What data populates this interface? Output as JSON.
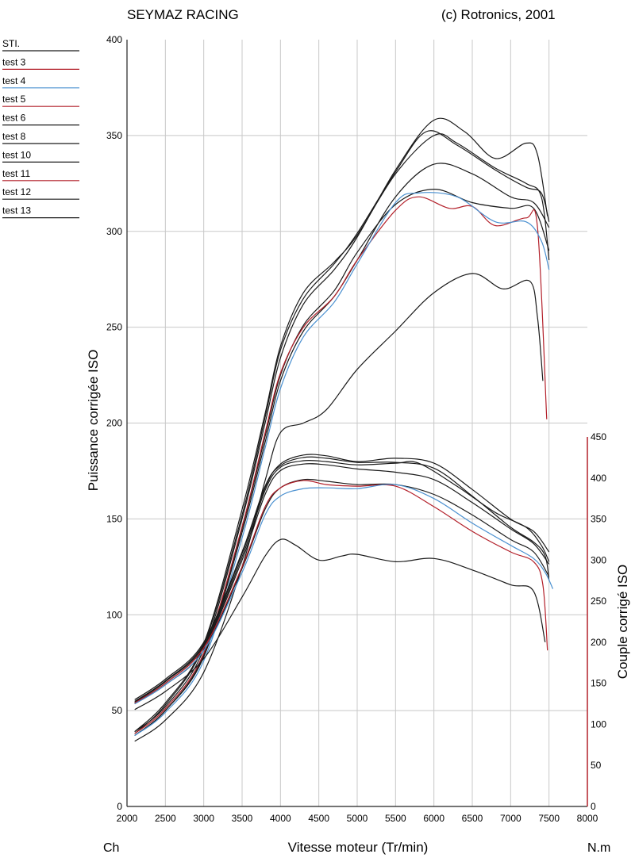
{
  "header": {
    "title": "SEYMAZ RACING",
    "copyright": "(c) Rotronics, 2001"
  },
  "colors": {
    "black": "#1a1a1a",
    "red": "#b3202a",
    "blue": "#4a90d0",
    "grid": "#c8c8c8"
  },
  "chart_data": {
    "type": "line",
    "xlabel": "Vitesse moteur (Tr/min)",
    "ylabel_left": "Puissance corrigée ISO",
    "ylabel_right": "Couple corrigé ISO",
    "unit_left": "Ch",
    "unit_right": "N.m",
    "xlim": [
      2000,
      8000
    ],
    "ylim_left": [
      0,
      400
    ],
    "ylim_right": [
      0,
      450
    ],
    "x_ticks": [
      2000,
      2500,
      3000,
      3500,
      4000,
      4500,
      5000,
      5500,
      6000,
      6500,
      7000,
      7500,
      8000
    ],
    "y_left_ticks": [
      0,
      50,
      100,
      150,
      200,
      250,
      300,
      350,
      400
    ],
    "y_right_ticks": [
      0,
      50,
      100,
      150,
      200,
      250,
      300,
      350,
      400,
      450
    ],
    "grid": true,
    "legend_position": "top-left",
    "legend": [
      {
        "label": "STI.",
        "color": "black"
      },
      {
        "label": "test 3",
        "color": "red"
      },
      {
        "label": "test 4",
        "color": "blue"
      },
      {
        "label": "test 5",
        "color": "red"
      },
      {
        "label": "test 6",
        "color": "black"
      },
      {
        "label": "test 8",
        "color": "black"
      },
      {
        "label": "test 10",
        "color": "black"
      },
      {
        "label": "test 11",
        "color": "red"
      },
      {
        "label": "test 12",
        "color": "black"
      },
      {
        "label": "test 13",
        "color": "black"
      }
    ],
    "power_series": [
      {
        "color": "black",
        "points": [
          [
            2100,
            39
          ],
          [
            2500,
            54
          ],
          [
            3000,
            85
          ],
          [
            3500,
            155
          ],
          [
            3800,
            205
          ],
          [
            4000,
            240
          ],
          [
            4300,
            268
          ],
          [
            4700,
            284
          ],
          [
            5000,
            298
          ],
          [
            5500,
            330
          ],
          [
            6000,
            350
          ],
          [
            6300,
            346
          ],
          [
            6800,
            333
          ],
          [
            7200,
            325
          ],
          [
            7400,
            318
          ],
          [
            7500,
            285
          ]
        ]
      },
      {
        "color": "black",
        "points": [
          [
            2100,
            39
          ],
          [
            2500,
            52
          ],
          [
            3000,
            82
          ],
          [
            3500,
            150
          ],
          [
            3800,
            200
          ],
          [
            4000,
            234
          ],
          [
            4300,
            262
          ],
          [
            4700,
            280
          ],
          [
            5000,
            297
          ],
          [
            5500,
            332
          ],
          [
            6000,
            358
          ],
          [
            6400,
            352
          ],
          [
            6800,
            338
          ],
          [
            7200,
            346
          ],
          [
            7350,
            340
          ],
          [
            7480,
            308
          ]
        ]
      },
      {
        "color": "black",
        "points": [
          [
            2100,
            38
          ],
          [
            2500,
            53
          ],
          [
            3000,
            84
          ],
          [
            3500,
            152
          ],
          [
            3800,
            203
          ],
          [
            4000,
            238
          ],
          [
            4300,
            265
          ],
          [
            4700,
            283
          ],
          [
            5000,
            299
          ],
          [
            5500,
            331
          ],
          [
            5900,
            352
          ],
          [
            6300,
            345
          ],
          [
            6800,
            332
          ],
          [
            7200,
            323
          ],
          [
            7400,
            320
          ],
          [
            7500,
            305
          ]
        ]
      },
      {
        "color": "black",
        "points": [
          [
            2100,
            37
          ],
          [
            2500,
            50
          ],
          [
            3000,
            78
          ],
          [
            3500,
            143
          ],
          [
            3800,
            190
          ],
          [
            4000,
            222
          ],
          [
            4300,
            248
          ],
          [
            4700,
            266
          ],
          [
            5000,
            285
          ],
          [
            5500,
            318
          ],
          [
            6000,
            335
          ],
          [
            6500,
            330
          ],
          [
            7000,
            318
          ],
          [
            7300,
            315
          ],
          [
            7500,
            302
          ]
        ]
      },
      {
        "color": "black",
        "points": [
          [
            2100,
            37
          ],
          [
            2500,
            50
          ],
          [
            3000,
            79
          ],
          [
            3500,
            145
          ],
          [
            3800,
            193
          ],
          [
            4000,
            225
          ],
          [
            4300,
            251
          ],
          [
            4700,
            269
          ],
          [
            5000,
            289
          ],
          [
            5500,
            314
          ],
          [
            6000,
            322
          ],
          [
            6500,
            315
          ],
          [
            7000,
            312
          ],
          [
            7300,
            312
          ],
          [
            7500,
            290
          ]
        ]
      },
      {
        "color": "red",
        "points": [
          [
            2100,
            38
          ],
          [
            2500,
            51
          ],
          [
            3000,
            80
          ],
          [
            3500,
            146
          ],
          [
            3800,
            195
          ],
          [
            4000,
            226
          ],
          [
            4300,
            250
          ],
          [
            4700,
            266
          ],
          [
            5000,
            285
          ],
          [
            5500,
            311
          ],
          [
            5800,
            318
          ],
          [
            6200,
            312
          ],
          [
            6500,
            313
          ],
          [
            6800,
            303
          ],
          [
            7200,
            307
          ],
          [
            7350,
            302
          ],
          [
            7470,
            202
          ]
        ]
      },
      {
        "color": "blue",
        "points": [
          [
            2100,
            37
          ],
          [
            2500,
            49
          ],
          [
            3000,
            76
          ],
          [
            3500,
            140
          ],
          [
            3800,
            187
          ],
          [
            4000,
            218
          ],
          [
            4300,
            245
          ],
          [
            4700,
            263
          ],
          [
            5000,
            283
          ],
          [
            5500,
            315
          ],
          [
            5800,
            320
          ],
          [
            6300,
            318
          ],
          [
            6800,
            305
          ],
          [
            7200,
            305
          ],
          [
            7400,
            295
          ],
          [
            7500,
            280
          ]
        ]
      },
      {
        "color": "black",
        "points": [
          [
            2100,
            34
          ],
          [
            2500,
            45
          ],
          [
            3000,
            70
          ],
          [
            3500,
            125
          ],
          [
            3800,
            170
          ],
          [
            4000,
            195
          ],
          [
            4300,
            200
          ],
          [
            4600,
            207
          ],
          [
            5000,
            228
          ],
          [
            5500,
            248
          ],
          [
            6000,
            268
          ],
          [
            6500,
            278
          ],
          [
            6900,
            270
          ],
          [
            7250,
            274
          ],
          [
            7350,
            255
          ],
          [
            7420,
            222
          ]
        ]
      }
    ],
    "torque_series": [
      {
        "color": "black",
        "points": [
          [
            2100,
            130
          ],
          [
            2500,
            155
          ],
          [
            3000,
            200
          ],
          [
            3500,
            310
          ],
          [
            3800,
            390
          ],
          [
            4000,
            415
          ],
          [
            4300,
            425
          ],
          [
            4600,
            424
          ],
          [
            5000,
            419
          ],
          [
            5500,
            419
          ],
          [
            6000,
            412
          ],
          [
            6500,
            378
          ],
          [
            7000,
            340
          ],
          [
            7300,
            322
          ],
          [
            7450,
            305
          ],
          [
            7500,
            275
          ]
        ]
      },
      {
        "color": "black",
        "points": [
          [
            2100,
            128
          ],
          [
            2500,
            153
          ],
          [
            3000,
            198
          ],
          [
            3500,
            308
          ],
          [
            3800,
            388
          ],
          [
            4000,
            417
          ],
          [
            4300,
            428
          ],
          [
            4600,
            427
          ],
          [
            5000,
            420
          ],
          [
            5500,
            424
          ],
          [
            6000,
            418
          ],
          [
            6500,
            386
          ],
          [
            7000,
            350
          ],
          [
            7300,
            335
          ],
          [
            7500,
            310
          ]
        ]
      },
      {
        "color": "black",
        "points": [
          [
            2100,
            127
          ],
          [
            2500,
            152
          ],
          [
            3000,
            196
          ],
          [
            3500,
            304
          ],
          [
            3800,
            385
          ],
          [
            4000,
            413
          ],
          [
            4300,
            421
          ],
          [
            4600,
            420
          ],
          [
            5000,
            416
          ],
          [
            5500,
            418
          ],
          [
            5800,
            418
          ],
          [
            6300,
            390
          ],
          [
            6800,
            358
          ],
          [
            7200,
            340
          ],
          [
            7400,
            318
          ],
          [
            7500,
            298
          ]
        ]
      },
      {
        "color": "black",
        "points": [
          [
            2100,
            126
          ],
          [
            2500,
            150
          ],
          [
            3000,
            194
          ],
          [
            3500,
            300
          ],
          [
            3800,
            380
          ],
          [
            4000,
            409
          ],
          [
            4300,
            417
          ],
          [
            4600,
            416
          ],
          [
            5000,
            411
          ],
          [
            5500,
            407
          ],
          [
            6000,
            398
          ],
          [
            6500,
            370
          ],
          [
            7000,
            338
          ],
          [
            7300,
            320
          ],
          [
            7500,
            295
          ]
        ]
      },
      {
        "color": "black",
        "points": [
          [
            2100,
            125
          ],
          [
            2500,
            148
          ],
          [
            3000,
            190
          ],
          [
            3500,
            290
          ],
          [
            3800,
            362
          ],
          [
            4000,
            388
          ],
          [
            4300,
            398
          ],
          [
            4600,
            396
          ],
          [
            5000,
            392
          ],
          [
            5500,
            392
          ],
          [
            6000,
            380
          ],
          [
            6500,
            355
          ],
          [
            7000,
            325
          ],
          [
            7300,
            310
          ],
          [
            7500,
            280
          ]
        ]
      },
      {
        "color": "red",
        "points": [
          [
            2100,
            126
          ],
          [
            2500,
            150
          ],
          [
            3000,
            193
          ],
          [
            3500,
            292
          ],
          [
            3800,
            365
          ],
          [
            4000,
            388
          ],
          [
            4300,
            397
          ],
          [
            4600,
            392
          ],
          [
            5000,
            390
          ],
          [
            5500,
            390
          ],
          [
            6000,
            365
          ],
          [
            6500,
            335
          ],
          [
            7000,
            310
          ],
          [
            7300,
            298
          ],
          [
            7420,
            270
          ],
          [
            7480,
            190
          ]
        ]
      },
      {
        "color": "blue",
        "points": [
          [
            2100,
            125
          ],
          [
            2500,
            148
          ],
          [
            3000,
            190
          ],
          [
            3500,
            285
          ],
          [
            3800,
            355
          ],
          [
            4000,
            378
          ],
          [
            4300,
            387
          ],
          [
            4600,
            388
          ],
          [
            5000,
            387
          ],
          [
            5500,
            392
          ],
          [
            6000,
            375
          ],
          [
            6500,
            345
          ],
          [
            7000,
            318
          ],
          [
            7300,
            302
          ],
          [
            7450,
            285
          ],
          [
            7550,
            265
          ]
        ]
      },
      {
        "color": "black",
        "points": [
          [
            2100,
            118
          ],
          [
            2500,
            140
          ],
          [
            3000,
            180
          ],
          [
            3500,
            255
          ],
          [
            3800,
            305
          ],
          [
            4000,
            325
          ],
          [
            4200,
            318
          ],
          [
            4500,
            300
          ],
          [
            4800,
            305
          ],
          [
            5000,
            307
          ],
          [
            5500,
            298
          ],
          [
            6000,
            302
          ],
          [
            6500,
            288
          ],
          [
            7000,
            270
          ],
          [
            7300,
            262
          ],
          [
            7450,
            200
          ]
        ]
      }
    ]
  }
}
